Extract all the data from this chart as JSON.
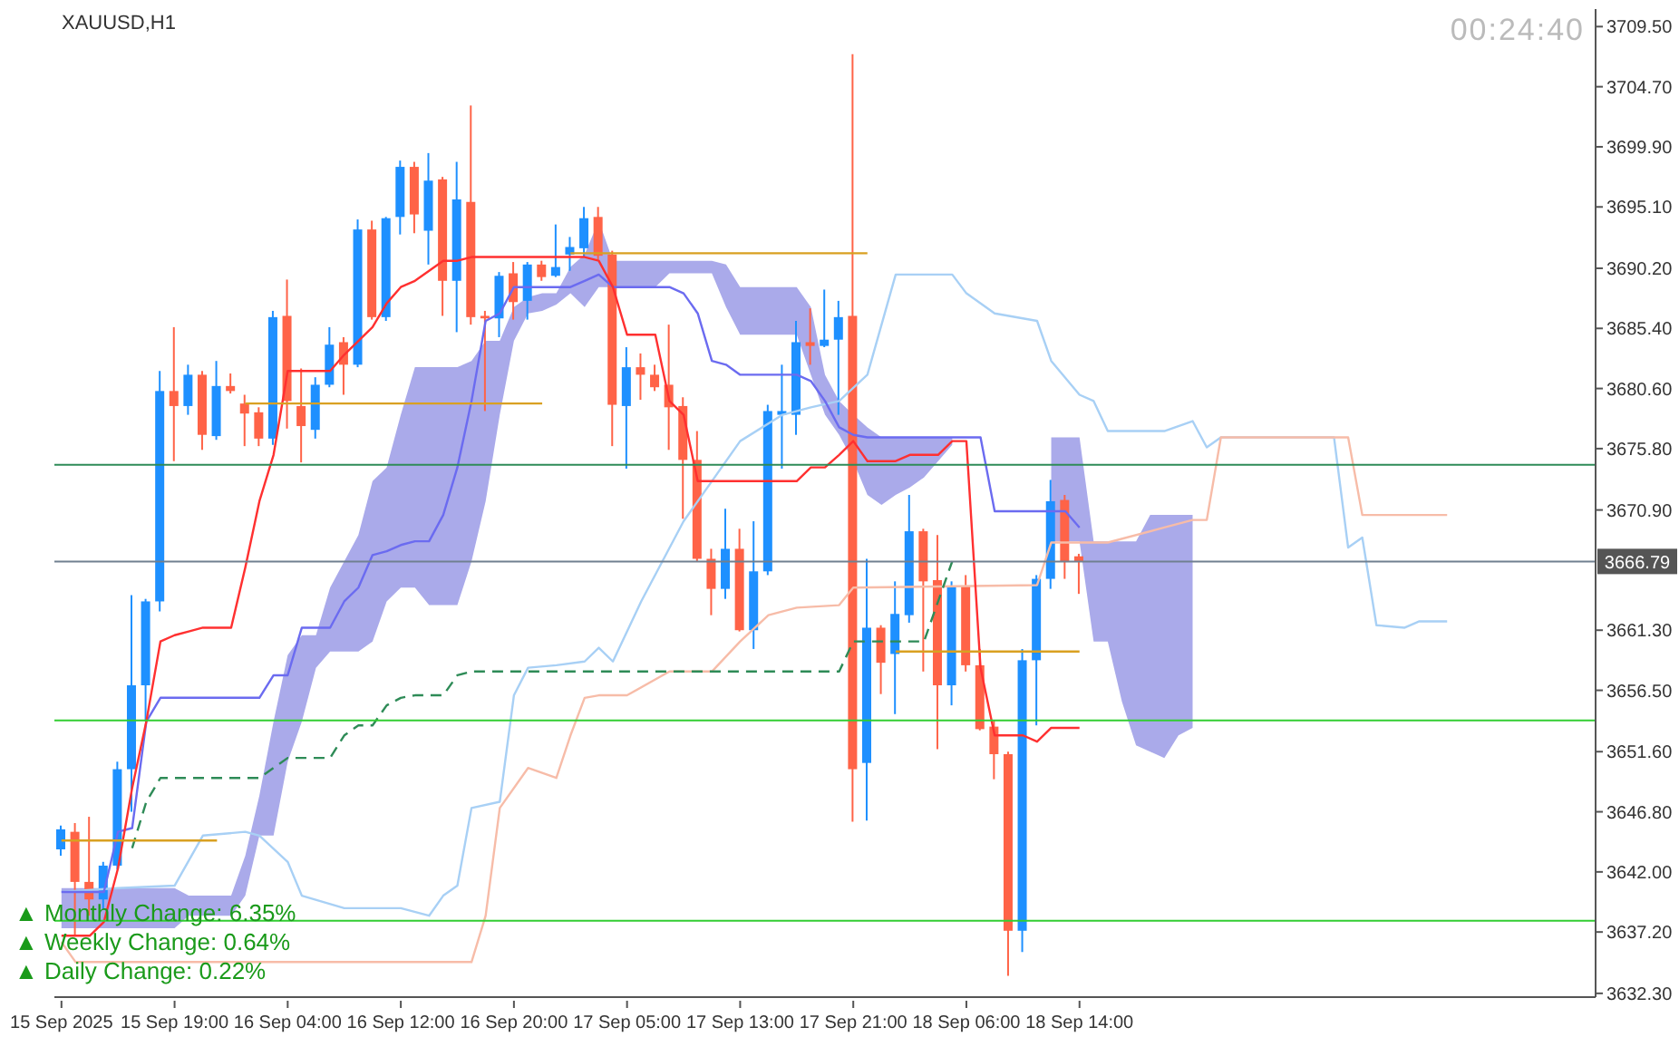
{
  "chart_data": {
    "type": "candlestick",
    "title": "XAUUSD,H1",
    "categories": [
      "15 Sep 2025",
      null,
      null,
      null,
      null,
      null,
      null,
      null,
      "15 Sep 19:00",
      null,
      null,
      null,
      null,
      null,
      null,
      null,
      "16 Sep 04:00",
      null,
      null,
      null,
      null,
      null,
      null,
      null,
      "16 Sep 12:00",
      null,
      null,
      null,
      null,
      null,
      null,
      null,
      "16 Sep 20:00",
      null,
      null,
      null,
      null,
      null,
      null,
      null,
      "17 Sep 05:00",
      null,
      null,
      null,
      null,
      null,
      null,
      null,
      "17 Sep 13:00",
      null,
      null,
      null,
      null,
      null,
      null,
      null,
      "17 Sep 21:00",
      null,
      null,
      null,
      null,
      null,
      null,
      null,
      "18 Sep 06:00",
      null,
      null,
      null,
      null,
      null,
      null,
      null,
      "18 Sep 14:00",
      null,
      null,
      null,
      null,
      null,
      null,
      null,
      null,
      null,
      null,
      null,
      null,
      null,
      null,
      null,
      null,
      null,
      null,
      null,
      null,
      null,
      null,
      null,
      null,
      null,
      null,
      null,
      null,
      null,
      null,
      null,
      null,
      null,
      null,
      null,
      null
    ],
    "ohlc": [
      [
        3643.8,
        3645.7,
        3643.3,
        3645.4
      ],
      [
        3645.2,
        3645.9,
        3636.9,
        3641.2
      ],
      [
        3641.2,
        3646.4,
        3638.5,
        3639.8
      ],
      [
        3639.8,
        3642.8,
        3639.0,
        3642.5
      ],
      [
        3642.5,
        3650.8,
        3642.2,
        3650.2
      ],
      [
        3650.2,
        3664.1,
        3646.8,
        3656.9
      ],
      [
        3656.9,
        3663.8,
        3654.0,
        3663.6
      ],
      [
        3663.6,
        3682.0,
        3662.8,
        3680.4
      ],
      [
        3680.4,
        3685.5,
        3674.8,
        3679.2
      ],
      [
        3679.2,
        3682.5,
        3678.5,
        3681.7
      ],
      [
        3681.7,
        3682.0,
        3675.7,
        3676.9
      ],
      [
        3676.8,
        3682.8,
        3676.5,
        3680.8
      ],
      [
        3680.8,
        3681.8,
        3680.2,
        3680.4
      ],
      [
        3679.4,
        3680.1,
        3676.0,
        3678.6
      ],
      [
        3678.7,
        3679.1,
        3676.0,
        3676.6
      ],
      [
        3676.6,
        3686.8,
        3676.1,
        3686.3
      ],
      [
        3686.4,
        3689.3,
        3677.4,
        3679.6
      ],
      [
        3679.2,
        3682.2,
        3674.7,
        3677.6
      ],
      [
        3677.3,
        3681.5,
        3676.6,
        3680.9
      ],
      [
        3680.9,
        3685.5,
        3680.7,
        3684.1
      ],
      [
        3684.3,
        3684.7,
        3680.1,
        3682.5
      ],
      [
        3682.5,
        3694.1,
        3682.3,
        3693.3
      ],
      [
        3693.3,
        3694.0,
        3686.1,
        3686.3
      ],
      [
        3686.3,
        3694.3,
        3686.0,
        3694.2
      ],
      [
        3694.3,
        3698.8,
        3692.9,
        3698.3
      ],
      [
        3698.3,
        3698.7,
        3693.0,
        3694.5
      ],
      [
        3693.2,
        3699.4,
        3690.5,
        3697.2
      ],
      [
        3697.3,
        3697.5,
        3686.4,
        3689.2
      ],
      [
        3689.2,
        3698.7,
        3685.1,
        3695.7
      ],
      [
        3695.5,
        3703.2,
        3685.7,
        3686.3
      ],
      [
        3686.4,
        3686.8,
        3678.8,
        3686.2
      ],
      [
        3686.2,
        3689.9,
        3684.7,
        3689.6
      ],
      [
        3689.8,
        3690.7,
        3686.1,
        3687.5
      ],
      [
        3687.6,
        3690.7,
        3686.1,
        3690.5
      ],
      [
        3690.5,
        3690.8,
        3689.2,
        3689.5
      ],
      [
        3689.6,
        3693.7,
        3689.5,
        3690.3
      ],
      [
        3691.3,
        3692.7,
        3690.0,
        3691.9
      ],
      [
        3691.8,
        3695.1,
        3691.1,
        3694.2
      ],
      [
        3694.3,
        3695.1,
        3690.9,
        3691.2
      ],
      [
        3691.3,
        3691.6,
        3676.0,
        3679.3
      ],
      [
        3679.2,
        3683.9,
        3674.2,
        3682.3
      ],
      [
        3682.3,
        3683.4,
        3679.7,
        3681.7
      ],
      [
        3681.7,
        3682.5,
        3680.4,
        3680.7
      ],
      [
        3680.9,
        3685.7,
        3675.7,
        3679.1
      ],
      [
        3679.2,
        3679.9,
        3670.2,
        3674.9
      ],
      [
        3674.9,
        3677.2,
        3666.8,
        3667.0
      ],
      [
        3667.0,
        3667.8,
        3662.5,
        3664.6
      ],
      [
        3664.6,
        3671.0,
        3663.8,
        3667.8
      ],
      [
        3667.8,
        3669.4,
        3661.2,
        3661.3
      ],
      [
        3661.3,
        3670.0,
        3659.8,
        3666.0
      ],
      [
        3666.0,
        3679.3,
        3665.7,
        3678.8
      ],
      [
        3678.5,
        3682.5,
        3674.2,
        3678.8
      ],
      [
        3678.5,
        3686.0,
        3676.9,
        3684.3
      ],
      [
        3684.3,
        3687.0,
        3682.5,
        3684.0
      ],
      [
        3684.0,
        3688.5,
        3683.9,
        3684.5
      ],
      [
        3684.5,
        3687.6,
        3678.5,
        3686.3
      ],
      [
        3686.4,
        3707.3,
        3646.0,
        3650.2
      ],
      [
        3650.7,
        3667.0,
        3646.1,
        3661.5
      ],
      [
        3661.5,
        3661.7,
        3656.2,
        3658.7
      ],
      [
        3659.4,
        3665.2,
        3654.6,
        3662.6
      ],
      [
        3662.5,
        3672.1,
        3661.9,
        3669.2
      ],
      [
        3669.2,
        3669.4,
        3658.0,
        3665.2
      ],
      [
        3665.3,
        3668.9,
        3651.8,
        3656.9
      ],
      [
        3656.9,
        3665.2,
        3655.3,
        3664.8
      ],
      [
        3664.8,
        3665.7,
        3658.0,
        3658.5
      ],
      [
        3658.5,
        3659.8,
        3653.3,
        3653.4
      ],
      [
        3653.6,
        3654.1,
        3649.4,
        3651.4
      ],
      [
        3651.4,
        3651.6,
        3633.7,
        3637.3
      ],
      [
        3637.3,
        3659.8,
        3635.6,
        3658.9
      ],
      [
        3658.9,
        3665.7,
        3653.7,
        3665.4
      ],
      [
        3665.4,
        3673.3,
        3664.6,
        3671.6
      ],
      [
        3671.7,
        3672.1,
        3665.4,
        3666.8
      ],
      [
        3667.2,
        3667.4,
        3664.2,
        3666.8
      ],
      null,
      null,
      null,
      null,
      null,
      null,
      null,
      null,
      null,
      null,
      null,
      null,
      null,
      null,
      null,
      null,
      null,
      null,
      null,
      null,
      null,
      null,
      null,
      null,
      null,
      null,
      null,
      null,
      null,
      null,
      null,
      null,
      null,
      null,
      null,
      null
    ],
    "colors": [
      "#1e90ff",
      "#ff6347",
      "#ff6347",
      "#1e90ff",
      "#1e90ff",
      "#1e90ff",
      "#1e90ff",
      "#1e90ff",
      "#ff6347",
      "#1e90ff",
      "#ff6347",
      "#1e90ff",
      "#ff6347",
      "#ff6347",
      "#ff6347",
      "#1e90ff",
      "#ff6347",
      "#ff6347",
      "#1e90ff",
      "#1e90ff",
      "#ff6347",
      "#1e90ff",
      "#ff6347",
      "#1e90ff",
      "#1e90ff",
      "#ff6347",
      "#1e90ff",
      "#ff6347",
      "#1e90ff",
      "#ff6347",
      "#ff6347",
      "#1e90ff",
      "#ff6347",
      "#1e90ff",
      "#ff6347",
      "#1e90ff",
      "#1e90ff",
      "#1e90ff",
      "#ff6347",
      "#ff6347",
      "#1e90ff",
      "#ff6347",
      "#ff6347",
      "#ff6347",
      "#ff6347",
      "#ff6347",
      "#ff6347",
      "#1e90ff",
      "#ff6347",
      "#1e90ff",
      "#1e90ff",
      "#1e90ff",
      "#1e90ff",
      "#ff6347",
      "#1e90ff",
      "#1e90ff",
      "#ff6347",
      "#1e90ff",
      "#ff6347",
      "#1e90ff",
      "#1e90ff",
      "#ff6347",
      "#ff6347",
      "#1e90ff",
      "#ff6347",
      "#ff6347",
      "#ff6347",
      "#ff6347",
      "#1e90ff",
      "#1e90ff",
      "#1e90ff",
      "#ff6347",
      "#ff6347",
      null,
      null,
      null,
      null,
      null,
      null,
      null,
      null,
      null,
      null,
      null,
      null,
      null,
      null,
      null,
      null,
      null,
      null,
      null,
      null,
      null,
      null,
      null,
      null,
      null,
      null,
      null,
      null,
      null,
      null,
      null,
      null,
      null,
      null,
      null,
      null
    ],
    "series": [
      {
        "type": "area",
        "color": "#aaaaea",
        "values": [
          null,
          null,
          null,
          null,
          null,
          null,
          null,
          null,
          null,
          null,
          null,
          null,
          null,
          null,
          null,
          null,
          null,
          null,
          null,
          null,
          null,
          null,
          null,
          null,
          null,
          null,
          null,
          null,
          null,
          null,
          null,
          null,
          null,
          null,
          null,
          null,
          null,
          null,
          null,
          null,
          null,
          null,
          null,
          null,
          null,
          null,
          null,
          null,
          null,
          null,
          null,
          null,
          null,
          null,
          null,
          null,
          null,
          null,
          null,
          null,
          null,
          null,
          null,
          null,
          null,
          null,
          null,
          null,
          null,
          null,
          null,
          null,
          null,
          null,
          null,
          null,
          null,
          null,
          null,
          null,
          null,
          null,
          null,
          null,
          null,
          null,
          null,
          null,
          null,
          null,
          null,
          null,
          null,
          null,
          null,
          null,
          null,
          null,
          null,
          null,
          null,
          null,
          null,
          null,
          null,
          null,
          null,
          null,
          null
        ],
        "lower": [
          3637.5,
          3637.5,
          3637.5,
          3637.5,
          3637.5,
          3637.5,
          3637.5,
          3637.5,
          3637.5,
          3638.5,
          3638.5,
          3638.5,
          3638.5,
          3640.1,
          3644.9,
          3644.9,
          3650.8,
          3654.0,
          3658.3,
          3659.6,
          3659.6,
          3659.6,
          3660.4,
          3663.6,
          3664.7,
          3664.7,
          3663.3,
          3663.3,
          3663.3,
          3666.8,
          3671.6,
          3678.5,
          3684.4,
          3686.6,
          3686.8,
          3687.3,
          3688.2,
          3687.1,
          3688.7,
          3688.7,
          3688.7,
          3688.7,
          3688.7,
          3689.8,
          3689.8,
          3689.8,
          3689.8,
          3687.1,
          3684.9,
          3684.9,
          3684.9,
          3684.9,
          3684.9,
          3681.7,
          3678.5,
          3676.9,
          3674.8,
          3672.1,
          3671.3,
          3672.1,
          3672.7,
          3673.5,
          3674.8,
          3676.1,
          null,
          null,
          null,
          null,
          null,
          null,
          3668.4,
          3668.4,
          3668.4,
          3660.4,
          3660.4,
          3655.6,
          3652.1,
          3651.6,
          3651.1,
          3652.9,
          3653.5,
          null,
          null,
          null,
          null,
          null,
          null,
          null,
          null,
          null,
          null,
          null,
          null,
          null,
          null,
          null,
          null,
          null,
          null,
          null,
          null,
          null,
          null,
          null,
          null,
          null,
          null,
          null,
          null
        ],
        "upper": [
          3640.7,
          3640.7,
          3640.7,
          3640.7,
          3640.7,
          3640.7,
          3640.7,
          3640.7,
          3640.7,
          3640.1,
          3640.1,
          3640.1,
          3640.1,
          3643.3,
          3648.1,
          3654.0,
          3659.3,
          3660.9,
          3660.9,
          3664.7,
          3666.8,
          3668.9,
          3673.2,
          3674.3,
          3678.5,
          3682.3,
          3682.3,
          3682.3,
          3682.3,
          3682.8,
          3684.4,
          3684.4,
          3687.1,
          3687.9,
          3688.2,
          3688.2,
          3690.3,
          3691.3,
          3694.0,
          3690.8,
          3690.8,
          3690.8,
          3690.8,
          3690.8,
          3690.8,
          3690.8,
          3690.8,
          3690.5,
          3688.7,
          3688.7,
          3688.7,
          3688.7,
          3688.7,
          3687.1,
          3681.7,
          3679.6,
          3678.5,
          3677.5,
          3676.7,
          3676.7,
          3676.7,
          3676.7,
          3676.7,
          3676.7,
          null,
          null,
          null,
          null,
          null,
          null,
          3676.7,
          3676.7,
          3676.7,
          3668.4,
          3668.4,
          3668.4,
          3668.4,
          3670.5,
          3670.5,
          3670.5,
          3670.5,
          null,
          null,
          null,
          null,
          null,
          null,
          null,
          null,
          null,
          null,
          null,
          null,
          null,
          null,
          null,
          null,
          null,
          null,
          null,
          null,
          null,
          null,
          null,
          null,
          null,
          null,
          null,
          null
        ]
      },
      {
        "type": "line",
        "color": "#a8d0f5",
        "values": [
          3640.4,
          null,
          null,
          null,
          3640.7,
          null,
          null,
          null,
          3640.9,
          null,
          3644.9,
          null,
          null,
          3645.2,
          3644.9,
          null,
          3642.8,
          3640.1,
          null,
          null,
          3639.1,
          null,
          null,
          null,
          3639.1,
          null,
          3638.5,
          3640.1,
          3640.9,
          3647.1,
          null,
          3647.6,
          3656.1,
          3658.3,
          null,
          3658.5,
          null,
          3658.8,
          3659.9,
          3658.8,
          null,
          3663.6,
          null,
          null,
          3670.0,
          null,
          3673.2,
          null,
          3676.4,
          null,
          null,
          3678.5,
          null,
          3679.1,
          null,
          3679.6,
          null,
          3681.7,
          null,
          3689.7,
          null,
          null,
          null,
          3689.7,
          3688.2,
          null,
          3686.6,
          null,
          null,
          3686.0,
          3682.8,
          null,
          3680.1,
          3679.6,
          3677.2,
          null,
          3677.2,
          null,
          3677.2,
          null,
          3678.0,
          3675.9,
          3676.7,
          null,
          null,
          null,
          null,
          null,
          null,
          null,
          3676.7,
          3667.9,
          3668.7,
          3661.7,
          null,
          3661.5,
          3662.0,
          null,
          3662.0,
          null,
          null,
          null,
          null,
          null,
          null,
          null,
          null,
          null,
          null
        ]
      },
      {
        "type": "line",
        "color": "#f7bca8",
        "values": [
          3636.4,
          3634.8,
          null,
          null,
          null,
          null,
          null,
          null,
          null,
          null,
          null,
          null,
          null,
          null,
          null,
          null,
          null,
          null,
          null,
          null,
          null,
          null,
          null,
          null,
          null,
          null,
          null,
          null,
          null,
          3634.8,
          3638.5,
          3647.1,
          null,
          3650.3,
          null,
          3649.5,
          3652.9,
          3655.9,
          3656.1,
          null,
          3656.1,
          null,
          null,
          3658.0,
          null,
          null,
          3658.0,
          null,
          3660.4,
          null,
          3662.5,
          null,
          3663.1,
          null,
          null,
          3663.3,
          3664.7,
          null,
          null,
          null,
          null,
          null,
          null,
          null,
          null,
          null,
          null,
          null,
          null,
          3664.9,
          3668.3,
          null,
          null,
          null,
          3668.3,
          null,
          null,
          null,
          3669.5,
          null,
          3670.1,
          3670.1,
          3676.7,
          null,
          null,
          null,
          null,
          null,
          null,
          null,
          null,
          3676.7,
          3670.5,
          null,
          null,
          null,
          null,
          null,
          3670.5,
          null,
          null,
          null,
          null,
          null,
          null,
          null,
          null,
          null,
          null
        ]
      },
      {
        "type": "line",
        "color": "#2e8b57",
        "line_style": "dashed",
        "values": [
          null,
          null,
          null,
          null,
          null,
          3643.9,
          3647.6,
          3649.5,
          3649.5,
          3649.5,
          3649.5,
          3649.5,
          3649.5,
          3649.5,
          3649.5,
          3650.3,
          3651.1,
          3651.1,
          3651.1,
          3651.1,
          3652.9,
          3653.7,
          3653.7,
          3655.3,
          3655.9,
          3656.1,
          3656.1,
          3656.1,
          3657.7,
          3658.0,
          3658.0,
          3658.0,
          3658.0,
          3658.0,
          3658.0,
          3658.0,
          3658.0,
          3658.0,
          3658.0,
          3658.0,
          3658.0,
          3658.0,
          3658.0,
          3658.0,
          3658.0,
          3658.0,
          3658.0,
          3658.0,
          3658.0,
          3658.0,
          3658.0,
          3658.0,
          3658.0,
          3658.0,
          3658.0,
          3658.0,
          3660.4,
          3660.4,
          3660.4,
          3660.4,
          3660.4,
          3660.4,
          3663.6,
          3666.8,
          null,
          null,
          null,
          null,
          null,
          null,
          null,
          null,
          null,
          null,
          null,
          null,
          null,
          null,
          null,
          null,
          null,
          null,
          null,
          null,
          null,
          null,
          null,
          null,
          null,
          null,
          null,
          null,
          null,
          null,
          null,
          null,
          null,
          null,
          null,
          null,
          null,
          null,
          null,
          null,
          null,
          null,
          null,
          null,
          null
        ]
      },
      {
        "type": "line",
        "color": "#6b6bf0",
        "values": [
          3640.4,
          3640.4,
          3640.4,
          3640.4,
          3645.2,
          3645.5,
          3654.0,
          3655.9,
          3655.9,
          3655.9,
          3655.9,
          3655.9,
          3655.9,
          3655.9,
          3655.9,
          3657.7,
          3657.7,
          3661.5,
          3661.5,
          3661.5,
          3663.6,
          3664.7,
          3667.3,
          3667.6,
          3668.1,
          3668.4,
          3668.4,
          3670.5,
          3674.3,
          3679.6,
          3686.0,
          3686.6,
          3688.7,
          3688.7,
          3688.7,
          3688.7,
          3688.7,
          3689.2,
          3689.7,
          3688.7,
          3688.7,
          3688.7,
          3688.7,
          3688.7,
          3688.2,
          3686.6,
          3682.8,
          3682.5,
          3681.7,
          3681.7,
          3681.7,
          3681.7,
          3681.7,
          3681.2,
          3679.6,
          3677.5,
          3676.9,
          3676.7,
          3676.7,
          3676.7,
          3676.7,
          3676.7,
          3676.7,
          3676.7,
          3676.7,
          3676.7,
          3670.8,
          3670.8,
          3670.8,
          3670.8,
          3670.8,
          3670.8,
          3669.5,
          null,
          null,
          null,
          null,
          null,
          null,
          null,
          null,
          null,
          null,
          null,
          null,
          null,
          null,
          null,
          null,
          null,
          null,
          null,
          null,
          null,
          null,
          null,
          null,
          null,
          null,
          null,
          null,
          null,
          null,
          null,
          null,
          null,
          null,
          null,
          null
        ]
      },
      {
        "type": "line",
        "color": "#ff3030",
        "values": [
          3636.9,
          3636.9,
          3636.9,
          3638.0,
          3642.3,
          3648.7,
          3654.0,
          3660.4,
          3660.9,
          3661.2,
          3661.5,
          3661.5,
          3661.5,
          3666.3,
          3671.6,
          3675.3,
          3682.0,
          3682.0,
          3682.0,
          3682.0,
          3683.3,
          3684.4,
          3685.5,
          3687.4,
          3688.7,
          3689.2,
          3690.0,
          3690.8,
          3690.8,
          3691.1,
          3691.1,
          3691.1,
          3691.1,
          3691.1,
          3691.1,
          3691.1,
          3691.1,
          3691.1,
          3690.8,
          3688.7,
          3684.9,
          3684.9,
          3684.9,
          3679.6,
          3678.5,
          3673.2,
          3673.2,
          3673.2,
          3673.2,
          3673.2,
          3673.2,
          3673.2,
          3673.2,
          3674.3,
          3674.3,
          3675.3,
          3676.4,
          3674.8,
          3674.8,
          3674.8,
          3675.3,
          3675.3,
          3675.3,
          3676.4,
          3676.4,
          3658.3,
          3652.9,
          3652.9,
          3652.9,
          3652.4,
          3653.5,
          3653.5,
          3653.5,
          null,
          null,
          null,
          null,
          null,
          null,
          null,
          null,
          null,
          null,
          null,
          null,
          null,
          null,
          null,
          null,
          null,
          null,
          null,
          null,
          null,
          null,
          null,
          null,
          null,
          null,
          null,
          null,
          null,
          null,
          null,
          null,
          null,
          null,
          null,
          null
        ]
      },
      {
        "type": "line",
        "color": "#d9a021",
        "values": [
          3644.5,
          3644.5,
          3644.5,
          3644.5,
          3644.5,
          3644.5,
          3644.5,
          3644.5,
          3644.5,
          3644.5,
          3644.5,
          3644.5,
          null,
          null,
          null,
          null,
          null,
          null,
          null,
          null,
          null,
          null,
          null,
          null,
          null,
          null,
          null,
          null,
          null,
          null,
          null,
          null,
          null,
          null,
          null,
          null,
          null,
          null,
          null,
          null,
          null,
          null,
          null,
          null,
          null,
          null,
          null,
          null,
          null,
          null,
          null,
          null,
          null,
          null,
          null,
          null,
          null,
          null,
          null,
          null,
          null,
          null,
          null,
          null,
          null,
          null,
          null,
          null,
          null,
          null,
          null,
          null,
          null,
          null,
          null,
          null,
          null,
          null,
          null,
          null,
          null,
          null,
          null,
          null,
          null,
          null,
          null,
          null,
          null,
          null,
          null,
          null,
          null,
          null,
          null,
          null,
          null,
          null,
          null,
          null,
          null,
          null,
          null,
          null,
          null,
          null,
          null,
          null,
          null
        ]
      },
      {
        "type": "line",
        "color": "#d9a021",
        "values": [
          null,
          null,
          null,
          null,
          null,
          null,
          null,
          null,
          null,
          null,
          null,
          null,
          null,
          3679.4,
          3679.4,
          3679.4,
          3679.4,
          3679.4,
          3679.4,
          3679.4,
          3679.4,
          3679.4,
          3679.4,
          3679.4,
          3679.4,
          3679.4,
          3679.4,
          3679.4,
          3679.4,
          3679.4,
          3679.4,
          3679.4,
          3679.4,
          3679.4,
          3679.4,
          null,
          null,
          null,
          null,
          null,
          null,
          null,
          null,
          null,
          null,
          null,
          null,
          null,
          null,
          null,
          null,
          null,
          null,
          null,
          null,
          null,
          null,
          null,
          null,
          null,
          null,
          null,
          null,
          null,
          null,
          null,
          null,
          null,
          null,
          null,
          null,
          null,
          null,
          null,
          null,
          null,
          null,
          null,
          null,
          null,
          null,
          null,
          null,
          null,
          null,
          null,
          null,
          null,
          null,
          null,
          null,
          null,
          null,
          null,
          null,
          null,
          null,
          null,
          null,
          null,
          null,
          null,
          null,
          null,
          null,
          null,
          null,
          null,
          null
        ]
      },
      {
        "type": "line",
        "color": "#d9a021",
        "values": [
          null,
          null,
          null,
          null,
          null,
          null,
          null,
          null,
          null,
          null,
          null,
          null,
          null,
          null,
          null,
          null,
          null,
          null,
          null,
          null,
          null,
          null,
          null,
          null,
          null,
          null,
          null,
          null,
          null,
          null,
          null,
          null,
          null,
          null,
          null,
          null,
          3691.4,
          3691.4,
          3691.4,
          3691.4,
          3691.4,
          3691.4,
          3691.4,
          3691.4,
          3691.4,
          3691.4,
          3691.4,
          3691.4,
          3691.4,
          3691.4,
          3691.4,
          3691.4,
          3691.4,
          3691.4,
          3691.4,
          3691.4,
          3691.4,
          3691.4,
          null,
          null,
          null,
          null,
          null,
          null,
          null,
          null,
          null,
          null,
          null,
          null,
          null,
          null,
          null,
          null,
          null,
          null,
          null,
          null,
          null,
          null,
          null,
          null,
          null,
          null,
          null,
          null,
          null,
          null,
          null,
          null,
          null,
          null,
          null,
          null,
          null,
          null,
          null,
          null,
          null,
          null,
          null,
          null,
          null,
          null,
          null,
          null,
          null,
          null,
          null
        ]
      },
      {
        "type": "line",
        "color": "#d9a021",
        "values": [
          null,
          null,
          null,
          null,
          null,
          null,
          null,
          null,
          null,
          null,
          null,
          null,
          null,
          null,
          null,
          null,
          null,
          null,
          null,
          null,
          null,
          null,
          null,
          null,
          null,
          null,
          null,
          null,
          null,
          null,
          null,
          null,
          null,
          null,
          null,
          null,
          null,
          null,
          null,
          null,
          null,
          null,
          null,
          null,
          null,
          null,
          null,
          null,
          null,
          null,
          null,
          null,
          null,
          null,
          null,
          null,
          null,
          null,
          null,
          3659.6,
          3659.6,
          3659.6,
          3659.6,
          3659.6,
          3659.6,
          3659.6,
          3659.6,
          3659.6,
          3659.6,
          3659.6,
          3659.6,
          3659.6,
          3659.6,
          null,
          null,
          null,
          null,
          null,
          null,
          null,
          null,
          null,
          null,
          null,
          null,
          null,
          null,
          null,
          null,
          null,
          null,
          null,
          null,
          null,
          null,
          null,
          null,
          null,
          null,
          null,
          null,
          null,
          null,
          null,
          null,
          null,
          null,
          null,
          null
        ]
      }
    ],
    "ylim": [
      3632.0,
      3710.9
    ],
    "yticks": [
      {
        "value": 3709.5,
        "label": "3709.50"
      },
      {
        "value": 3704.7,
        "label": "3704.70"
      },
      {
        "value": 3699.9,
        "label": "3699.90"
      },
      {
        "value": 3695.1,
        "label": "3695.10"
      },
      {
        "value": 3690.2,
        "label": "3690.20"
      },
      {
        "value": 3685.4,
        "label": "3685.40"
      },
      {
        "value": 3680.6,
        "label": "3680.60"
      },
      {
        "value": 3675.8,
        "label": "3675.80"
      },
      {
        "value": 3670.9,
        "label": "3670.90"
      },
      {
        "value": 3661.3,
        "label": "3661.30"
      },
      {
        "value": 3656.5,
        "label": "3656.50"
      },
      {
        "value": 3651.6,
        "label": "3651.60"
      },
      {
        "value": 3646.8,
        "label": "3646.80"
      },
      {
        "value": 3642.0,
        "label": "3642.00"
      },
      {
        "value": 3637.2,
        "label": "3637.20"
      },
      {
        "value": 3632.3,
        "label": "3632.30"
      }
    ],
    "ref_lines": [
      {
        "axis": "y",
        "value": 3674.5,
        "color": "#2e8b57"
      },
      {
        "axis": "y",
        "value": 3666.79,
        "label": "3666.79",
        "color": "#708090"
      },
      {
        "axis": "y",
        "value": 3654.1,
        "color": "#32cd32"
      },
      {
        "axis": "y",
        "value": 3638.1,
        "color": "#32cd32"
      }
    ],
    "annotations": [
      "00:24:40",
      "▲ Monthly Change: 6.35%",
      "▲ Weekly Change: 0.64%",
      "▲ Daily Change: 0.22%"
    ]
  }
}
